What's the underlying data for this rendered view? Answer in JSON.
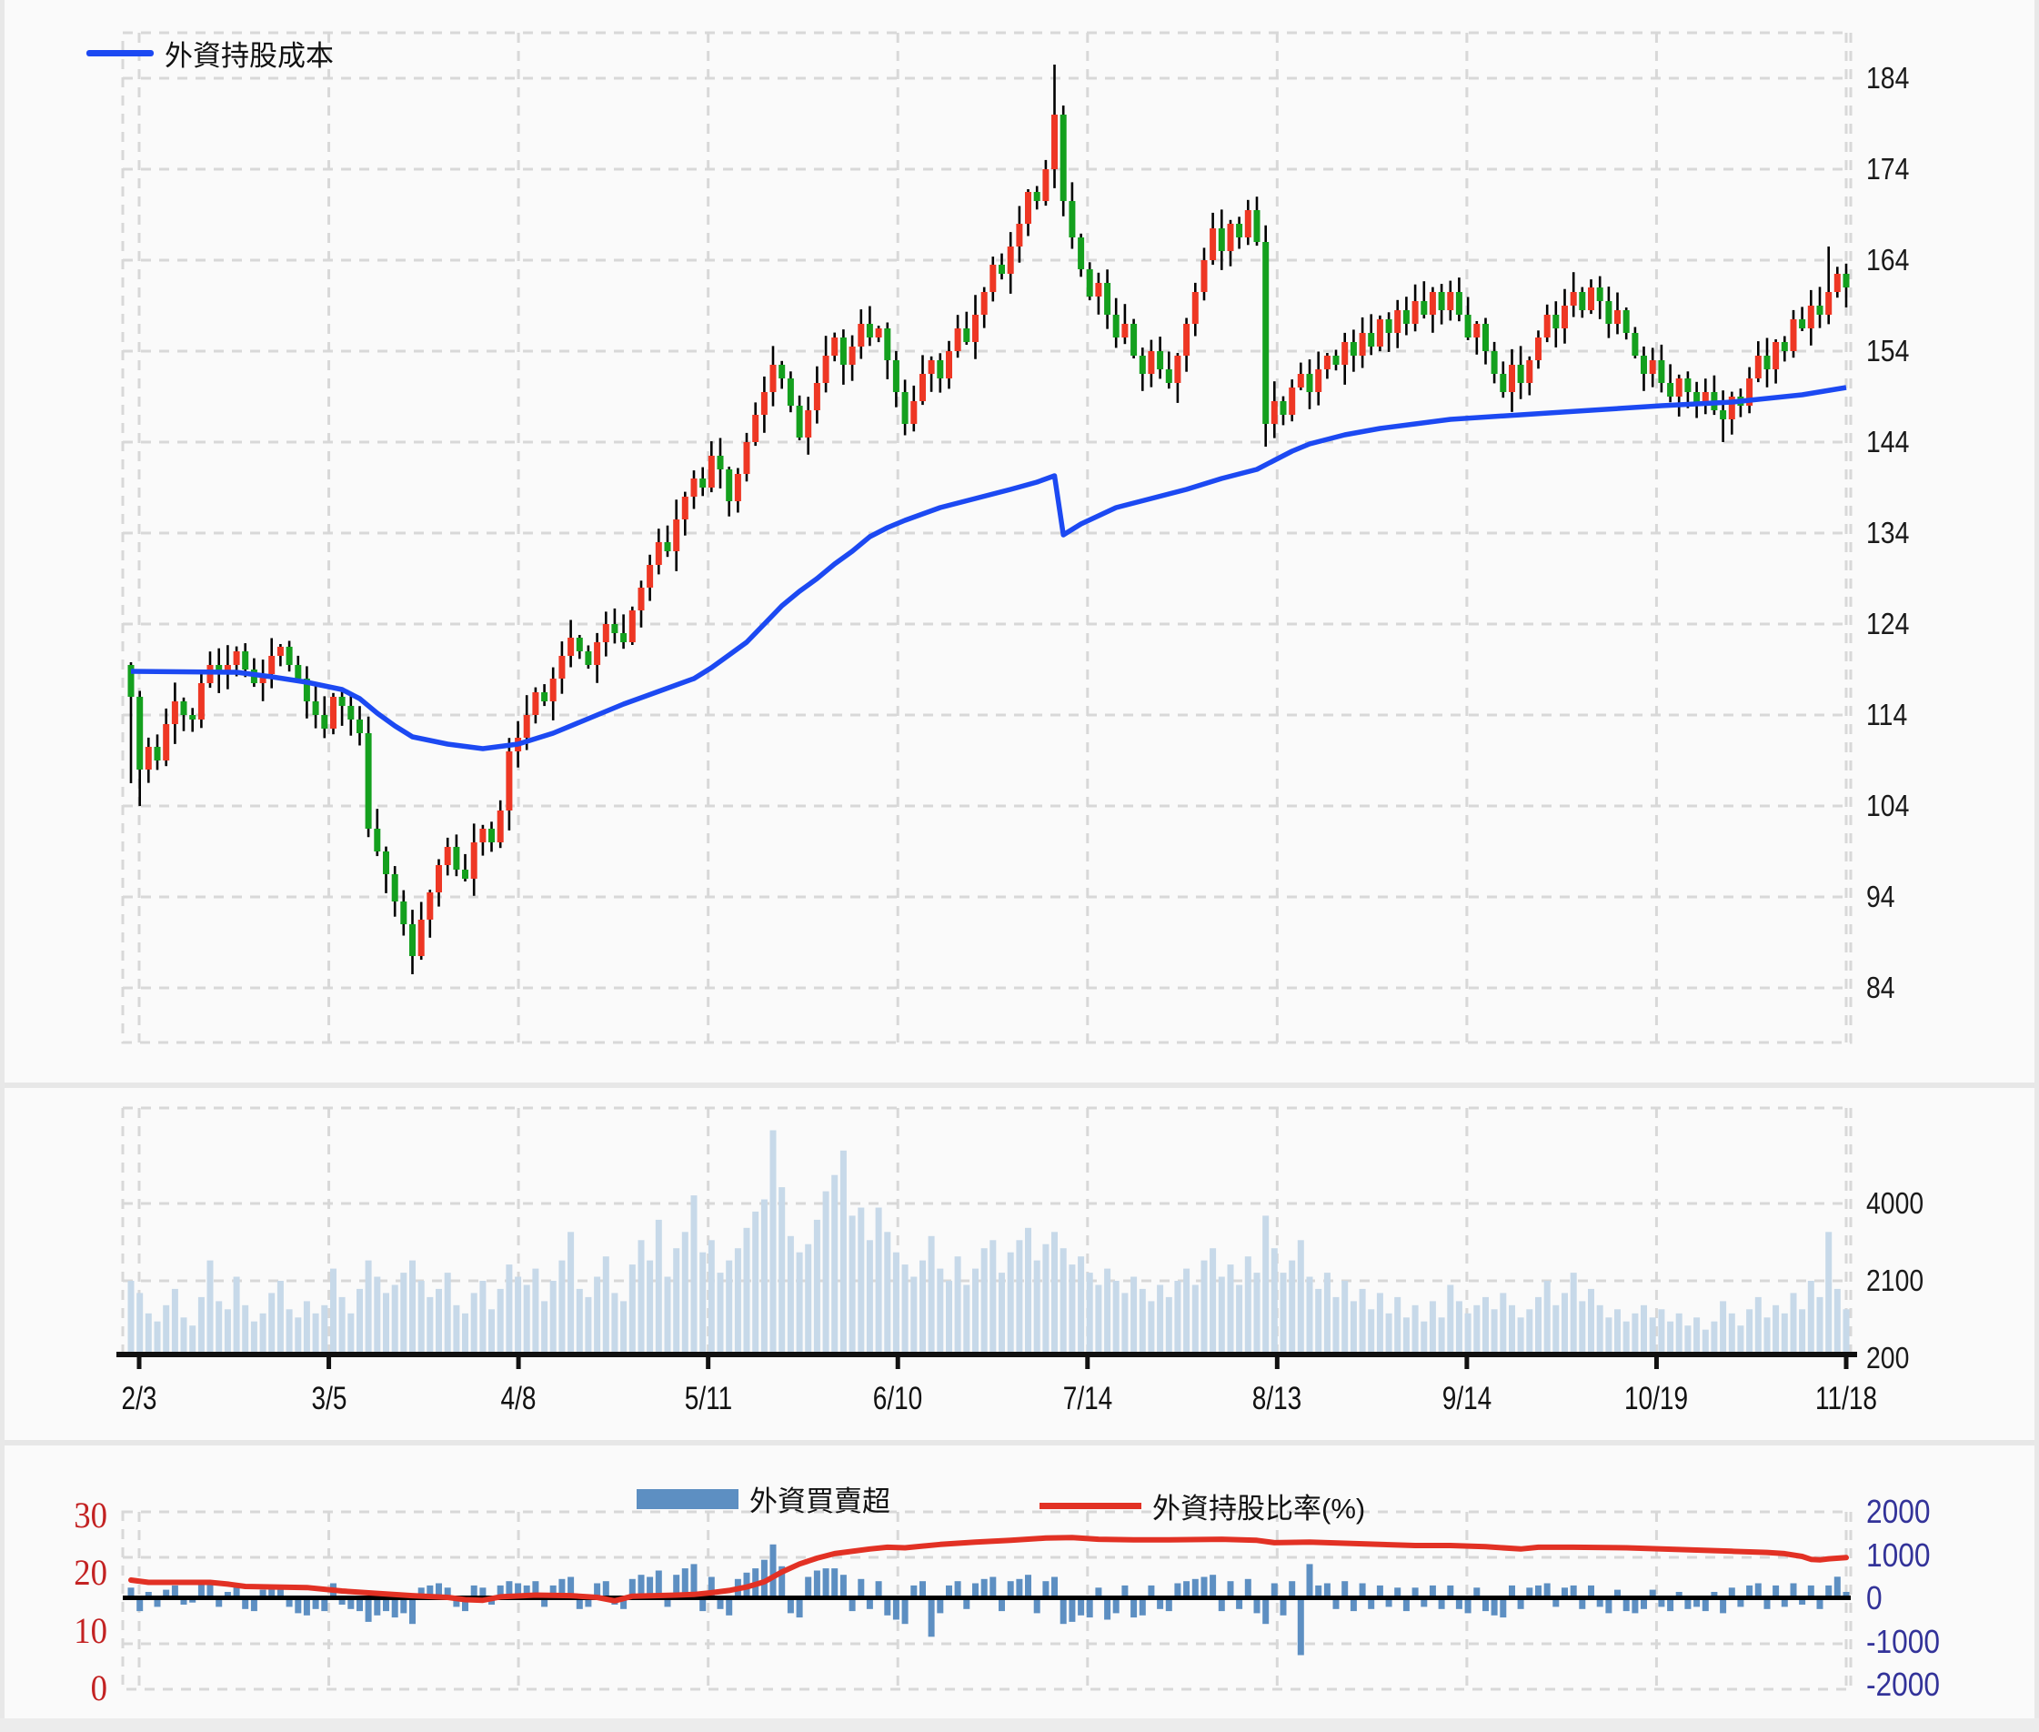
{
  "legend_top": {
    "label": "外資持股成本",
    "color": "#1c49f2"
  },
  "legend_bottom": {
    "bar_label": "外資買賣超",
    "bar_color": "#5d8fc2",
    "line_label": "外資持股比率(%)",
    "line_color": "#e23124"
  },
  "colors": {
    "candle_up": "#ee3724",
    "candle_down": "#14a01e",
    "wick": "#000000",
    "cost_line": "#1c49f2",
    "volume_bar": "#c7d9e9",
    "netbuy_bar": "#5d8fc2",
    "ratio_line": "#e23124",
    "grid": "#d8d8d8",
    "axis_black": "#111111",
    "price_label": "#1a1a1a",
    "netbuy_axis_label": "#333399",
    "ratio_axis_label": "#c32222"
  },
  "axes": {
    "price_ticks": [
      184,
      174,
      164,
      154,
      144,
      134,
      124,
      114,
      104,
      94,
      84
    ],
    "volume_ticks": [
      4000,
      2100,
      200
    ],
    "ratio_ticks": [
      30,
      20,
      10,
      0
    ],
    "netbuy_ticks": [
      2000,
      1000,
      0,
      -1000,
      -2000
    ],
    "dates": [
      "2/3",
      "3/5",
      "4/8",
      "5/11",
      "6/10",
      "7/14",
      "8/13",
      "9/14",
      "10/19",
      "11/18"
    ]
  },
  "chart_data": [
    {
      "id": "price",
      "type": "candlestick",
      "name": "daily price",
      "ylim": [
        84,
        184
      ],
      "first_open": 119.5,
      "closes": [
        116,
        108,
        110.5,
        109,
        113,
        115.5,
        114,
        113.5,
        117.5,
        119.5,
        118.5,
        119.5,
        121,
        119,
        117.5,
        118.5,
        120.5,
        121.5,
        119.5,
        118,
        115.5,
        114,
        112.5,
        116,
        115,
        113.5,
        112,
        101.5,
        99,
        96.5,
        93.5,
        91,
        87.5,
        91.5,
        94.5,
        97.5,
        99.5,
        97,
        96,
        100,
        101.5,
        100,
        103.5,
        110,
        111.5,
        114,
        116.5,
        115.5,
        118,
        120.5,
        122.5,
        121,
        119.5,
        122,
        124,
        123,
        122,
        125.5,
        128,
        130.5,
        133,
        132,
        135.5,
        138,
        140,
        139,
        142.5,
        141,
        137.5,
        140.5,
        144,
        147,
        149.5,
        152.5,
        151,
        148,
        144.5,
        147.5,
        150.5,
        153.5,
        155.5,
        152.5,
        154.5,
        157,
        155.5,
        156.5,
        153,
        149.5,
        146,
        148.5,
        151.5,
        153,
        151,
        154,
        156.5,
        155,
        158,
        160.5,
        163.5,
        162.5,
        165.5,
        168,
        171.5,
        170.5,
        174,
        180,
        170.5,
        166.5,
        163,
        160,
        161.5,
        158,
        155.5,
        157,
        153.5,
        151.5,
        154,
        152,
        150.5,
        153.5,
        157,
        160.5,
        164,
        167.5,
        165,
        168,
        166.5,
        169.5,
        166,
        146,
        148.5,
        147,
        150,
        151.5,
        149.5,
        152,
        153.5,
        152.5,
        155,
        153.5,
        156,
        154.5,
        157.5,
        156,
        158.5,
        157,
        159.5,
        158,
        160.5,
        158.5,
        160.5,
        158,
        155.5,
        157,
        154,
        151.5,
        149.5,
        152.5,
        150.5,
        153,
        155.5,
        158,
        156.5,
        159,
        160.5,
        158.5,
        161,
        159.5,
        157,
        158.5,
        156,
        153.5,
        151.5,
        153,
        150.5,
        149,
        151,
        149.5,
        148,
        149.5,
        147.5,
        146.5,
        149,
        148,
        151,
        153.5,
        152,
        155,
        154,
        157.5,
        156.5,
        159,
        158,
        160.5,
        162.5,
        161
      ],
      "wick_overrides": {
        "0": {
          "low": 106.5
        },
        "1": {
          "low": 104
        },
        "32": {
          "low": 85.5
        },
        "105": {
          "high": 185.5
        },
        "106": {
          "high": 181
        },
        "129": {
          "low": 143.5
        },
        "181": {
          "low": 144
        },
        "193": {
          "high": 165.5
        }
      }
    },
    {
      "id": "cost",
      "type": "line",
      "name": "外資持股成本",
      "points": [
        [
          0,
          118.8
        ],
        [
          12,
          118.7
        ],
        [
          16,
          118.2
        ],
        [
          20,
          117.6
        ],
        [
          24,
          116.8
        ],
        [
          26,
          115.8
        ],
        [
          28,
          114.2
        ],
        [
          30,
          112.8
        ],
        [
          32,
          111.6
        ],
        [
          36,
          110.8
        ],
        [
          40,
          110.3
        ],
        [
          44,
          110.8
        ],
        [
          48,
          112
        ],
        [
          52,
          113.6
        ],
        [
          56,
          115.2
        ],
        [
          60,
          116.6
        ],
        [
          64,
          118
        ],
        [
          66,
          119.2
        ],
        [
          68,
          120.6
        ],
        [
          70,
          122
        ],
        [
          72,
          124
        ],
        [
          74,
          126
        ],
        [
          76,
          127.6
        ],
        [
          78,
          129
        ],
        [
          80,
          130.6
        ],
        [
          82,
          132
        ],
        [
          84,
          133.6
        ],
        [
          86,
          134.6
        ],
        [
          88,
          135.4
        ],
        [
          92,
          136.8
        ],
        [
          96,
          137.8
        ],
        [
          100,
          138.8
        ],
        [
          103,
          139.6
        ],
        [
          105,
          140.3
        ],
        [
          106,
          133.8
        ],
        [
          108,
          135
        ],
        [
          112,
          136.8
        ],
        [
          116,
          137.8
        ],
        [
          120,
          138.8
        ],
        [
          124,
          140
        ],
        [
          128,
          141
        ],
        [
          130,
          142
        ],
        [
          132,
          143
        ],
        [
          134,
          143.8
        ],
        [
          138,
          144.8
        ],
        [
          142,
          145.5
        ],
        [
          146,
          146
        ],
        [
          150,
          146.5
        ],
        [
          158,
          147
        ],
        [
          166,
          147.5
        ],
        [
          174,
          148
        ],
        [
          182,
          148.4
        ],
        [
          186,
          148.8
        ],
        [
          190,
          149.2
        ],
        [
          195,
          150
        ]
      ]
    },
    {
      "id": "volume",
      "type": "bar",
      "name": "volume",
      "ylim": [
        200,
        4000
      ],
      "values": [
        2100,
        1800,
        1300,
        1100,
        1500,
        1900,
        1200,
        1000,
        1700,
        2600,
        1600,
        1400,
        2200,
        1500,
        1100,
        1300,
        1800,
        2100,
        1400,
        1200,
        1600,
        1300,
        1500,
        2400,
        1700,
        1300,
        1900,
        2600,
        2200,
        1800,
        2000,
        2300,
        2600,
        2100,
        1700,
        1900,
        2300,
        1500,
        1300,
        1800,
        2100,
        1400,
        1900,
        2500,
        2200,
        2000,
        2400,
        1600,
        2100,
        2600,
        3300,
        1900,
        1700,
        2200,
        2700,
        1800,
        1600,
        2500,
        3100,
        2600,
        3600,
        2200,
        2900,
        3300,
        4200,
        2800,
        3100,
        2300,
        2600,
        2900,
        3400,
        3800,
        4100,
        5800,
        4400,
        3200,
        2800,
        3000,
        3600,
        4300,
        4700,
        5300,
        3700,
        3900,
        3100,
        3900,
        3300,
        2800,
        2500,
        2200,
        2600,
        3200,
        2400,
        2100,
        2700,
        2000,
        2400,
        2900,
        3100,
        2300,
        2800,
        3100,
        3400,
        2600,
        3000,
        3300,
        2900,
        2500,
        2700,
        2300,
        2000,
        2400,
        2100,
        1800,
        2200,
        1900,
        1600,
        2000,
        1700,
        2100,
        2400,
        2000,
        2600,
        2900,
        2200,
        2500,
        2000,
        2700,
        2300,
        3700,
        2900,
        2300,
        2600,
        3100,
        2200,
        1900,
        2300,
        1700,
        2100,
        1600,
        1900,
        1400,
        1800,
        1300,
        1700,
        1200,
        1500,
        1100,
        1600,
        1200,
        2000,
        1600,
        1300,
        1500,
        1700,
        1400,
        1800,
        1500,
        1200,
        1400,
        1700,
        2100,
        1500,
        1800,
        2300,
        1600,
        1900,
        1500,
        1200,
        1400,
        1100,
        1300,
        1500,
        1200,
        1400,
        1100,
        1300,
        1000,
        1200,
        900,
        1100,
        1600,
        1300,
        1000,
        1400,
        1700,
        1200,
        1500,
        1300,
        1800,
        1400,
        2100,
        1700,
        3300,
        1900,
        1400
      ]
    },
    {
      "id": "netbuy",
      "type": "bar",
      "name": "外資買賣超",
      "ylim": [
        -2000,
        2000
      ],
      "values": [
        250,
        -300,
        150,
        -200,
        200,
        300,
        -150,
        -100,
        350,
        400,
        -200,
        150,
        300,
        -250,
        -300,
        200,
        250,
        300,
        -200,
        -350,
        -400,
        -250,
        -300,
        350,
        -150,
        -250,
        -300,
        -550,
        -400,
        -300,
        -450,
        -350,
        -600,
        250,
        300,
        350,
        250,
        -200,
        -300,
        300,
        250,
        -150,
        300,
        400,
        350,
        300,
        400,
        -200,
        300,
        450,
        500,
        -250,
        -200,
        350,
        400,
        -150,
        -250,
        450,
        550,
        500,
        650,
        -200,
        550,
        700,
        800,
        -300,
        500,
        -250,
        -400,
        450,
        600,
        700,
        900,
        1260,
        750,
        -350,
        -450,
        500,
        650,
        700,
        700,
        550,
        -300,
        450,
        -250,
        400,
        -400,
        -500,
        -600,
        300,
        400,
        -900,
        -350,
        300,
        400,
        -250,
        350,
        450,
        500,
        -300,
        400,
        450,
        550,
        -350,
        400,
        500,
        -600,
        -550,
        -400,
        -450,
        250,
        -500,
        -350,
        300,
        -450,
        -400,
        300,
        -250,
        -300,
        350,
        400,
        450,
        500,
        550,
        -300,
        400,
        -250,
        450,
        -350,
        -600,
        350,
        -400,
        400,
        -1330,
        800,
        300,
        350,
        -250,
        400,
        -300,
        350,
        -250,
        300,
        -200,
        250,
        -300,
        250,
        -200,
        300,
        -250,
        300,
        -250,
        -350,
        250,
        -300,
        -400,
        -450,
        300,
        -250,
        250,
        300,
        350,
        -200,
        250,
        300,
        -250,
        300,
        -200,
        -350,
        200,
        -300,
        -350,
        -250,
        200,
        -200,
        -300,
        150,
        -250,
        -200,
        -300,
        150,
        -350,
        250,
        -200,
        300,
        350,
        -250,
        300,
        -200,
        350,
        -150,
        300,
        -250,
        300,
        505,
        150
      ]
    },
    {
      "id": "ratio",
      "type": "line",
      "name": "外資持股比率(%)",
      "ylim": [
        0,
        30
      ],
      "points": [
        [
          0,
          18.8
        ],
        [
          2,
          18.4
        ],
        [
          9,
          18.4
        ],
        [
          11,
          18.1
        ],
        [
          13,
          17.7
        ],
        [
          20,
          17.5
        ],
        [
          24,
          16.9
        ],
        [
          28,
          16.5
        ],
        [
          32,
          16.1
        ],
        [
          36,
          15.8
        ],
        [
          38,
          15.4
        ],
        [
          40,
          15.3
        ],
        [
          42,
          15.9
        ],
        [
          46,
          16.2
        ],
        [
          50,
          16.1
        ],
        [
          53,
          15.8
        ],
        [
          55,
          15.2
        ],
        [
          57,
          16.0
        ],
        [
          62,
          16.2
        ],
        [
          64,
          16.3
        ],
        [
          66,
          16.6
        ],
        [
          68,
          17.0
        ],
        [
          70,
          17.6
        ],
        [
          72,
          18.5
        ],
        [
          74,
          20.2
        ],
        [
          76,
          21.6
        ],
        [
          78,
          22.6
        ],
        [
          80,
          23.4
        ],
        [
          84,
          24.2
        ],
        [
          86,
          24.5
        ],
        [
          88,
          24.4
        ],
        [
          92,
          25.0
        ],
        [
          96,
          25.4
        ],
        [
          100,
          25.7
        ],
        [
          104,
          26.1
        ],
        [
          107,
          26.2
        ],
        [
          110,
          25.9
        ],
        [
          114,
          25.8
        ],
        [
          118,
          25.8
        ],
        [
          124,
          25.9
        ],
        [
          128,
          25.7
        ],
        [
          130,
          25.3
        ],
        [
          134,
          25.4
        ],
        [
          140,
          25.1
        ],
        [
          146,
          24.8
        ],
        [
          150,
          24.8
        ],
        [
          154,
          24.6
        ],
        [
          158,
          24.2
        ],
        [
          160,
          24.5
        ],
        [
          164,
          24.5
        ],
        [
          170,
          24.4
        ],
        [
          176,
          24.1
        ],
        [
          182,
          23.8
        ],
        [
          186,
          23.6
        ],
        [
          188,
          23.4
        ],
        [
          190,
          22.9
        ],
        [
          191,
          22.4
        ],
        [
          192,
          22.3
        ],
        [
          193,
          22.5
        ],
        [
          195,
          22.7
        ]
      ]
    }
  ]
}
